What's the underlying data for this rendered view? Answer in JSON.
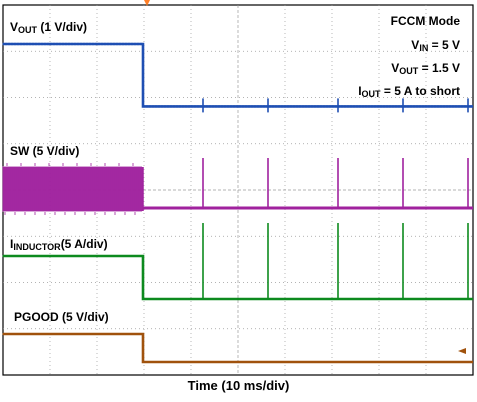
{
  "chart_data": {
    "type": "line",
    "title": "",
    "xlabel": "Time  (10 ms/div)",
    "grid": true,
    "annotations": {
      "mode": "FCCM Mode",
      "vin": {
        "sym": "V",
        "sub": "IN",
        "rest": " = 5 V"
      },
      "vout": {
        "sym": "V",
        "sub": "OUT",
        "rest": " = 1.5 V"
      },
      "iout": {
        "sym": "I",
        "sub": "OUT",
        "rest": "  = 5 A to short"
      }
    },
    "series": [
      {
        "name": "VOUT",
        "label_sym": "V",
        "label_sub": "OUT",
        "label_rest": "  (1 V/div)",
        "color": "#1f4fb3",
        "x": [
          0,
          5.6,
          5.6,
          18.8
        ],
        "y": [
          1.5,
          1.5,
          0.2,
          0.2
        ],
        "spikes_x": [
          8.0,
          10.6,
          13.4,
          16.0,
          18.6
        ]
      },
      {
        "name": "SW",
        "label_sym": "SW",
        "label_sub": "",
        "label_rest": " (5 V/div)",
        "color": "#a0229e",
        "x": [
          0,
          5.6,
          5.6,
          18.8
        ],
        "y": [
          5,
          5,
          0,
          0
        ],
        "spikes_x": [
          8.0,
          10.6,
          13.4,
          16.0,
          18.6
        ]
      },
      {
        "name": "IINDUCTOR",
        "label_sym": "I",
        "label_sub": "INDUCTOR",
        "label_rest": "(5 A/div)",
        "color": "#0d8a1e",
        "x": [
          0,
          5.6,
          5.6,
          18.8
        ],
        "y": [
          5,
          5,
          0,
          0
        ],
        "spikes_x": [
          8.0,
          10.6,
          13.4,
          16.0,
          18.6
        ]
      },
      {
        "name": "PGOOD",
        "label_sym": "PGOOD",
        "label_sub": "",
        "label_rest": " (5 V/div)",
        "color": "#a0520d",
        "x": [
          0,
          5.6,
          5.6,
          18.8
        ],
        "y": [
          5,
          5,
          0,
          0
        ]
      }
    ]
  }
}
